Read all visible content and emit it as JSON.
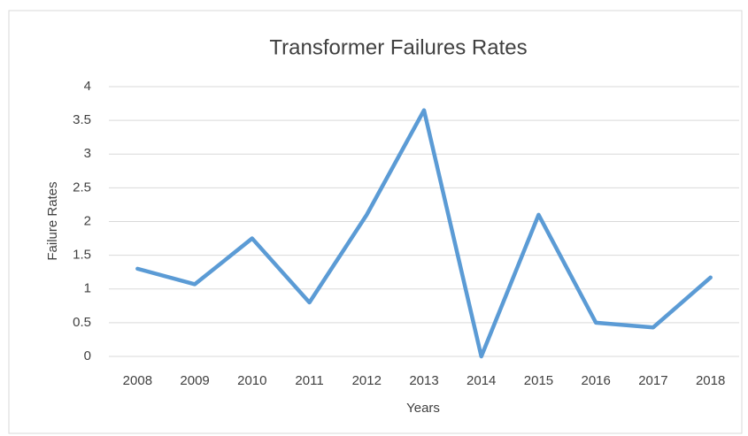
{
  "chart_data": {
    "type": "line",
    "title": "Transformer Failures Rates",
    "x_label": "Years",
    "y_label": "Failure Rates",
    "categories": [
      "2008",
      "2009",
      "2010",
      "2011",
      "2012",
      "2013",
      "2014",
      "2015",
      "2016",
      "2017",
      "2018"
    ],
    "series": [
      {
        "name": "Failure Rates",
        "color": "#5b9bd5",
        "values": [
          1.3,
          1.07,
          1.75,
          0.8,
          2.1,
          3.65,
          0,
          2.1,
          0.5,
          0.43,
          1.17
        ]
      }
    ],
    "ylim": [
      0,
      4
    ],
    "yticks": [
      0,
      0.5,
      1,
      1.5,
      2,
      2.5,
      3,
      3.5,
      4
    ],
    "grid": true
  }
}
